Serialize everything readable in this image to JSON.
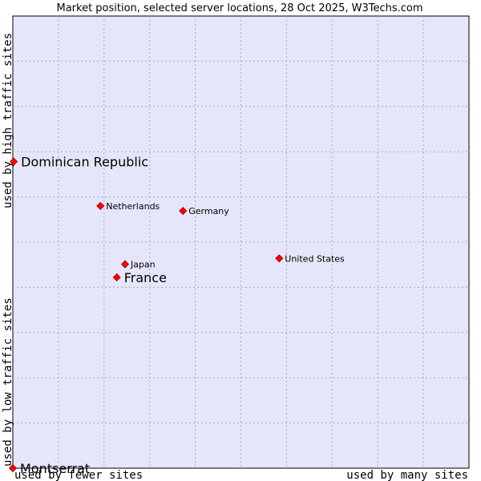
{
  "chart_data": {
    "type": "scatter",
    "title": "Market position, selected server locations, 28 Oct 2025, W3Techs.com",
    "xlabel_left": "used by fewer sites",
    "xlabel_right": "used by many sites",
    "ylabel_bottom": "used by low traffic sites",
    "ylabel_top": "used by high traffic sites",
    "xlim": [
      0,
      100
    ],
    "ylim": [
      0,
      100
    ],
    "grid": true,
    "points": [
      {
        "label": "Dominican Republic",
        "x": 0.2,
        "y": 67.8,
        "highlight": true
      },
      {
        "label": "Netherlands",
        "x": 19.2,
        "y": 58.0,
        "highlight": false
      },
      {
        "label": "Germany",
        "x": 37.3,
        "y": 56.9,
        "highlight": false
      },
      {
        "label": "United States",
        "x": 58.4,
        "y": 46.4,
        "highlight": false
      },
      {
        "label": "Japan",
        "x": 24.6,
        "y": 45.1,
        "highlight": false
      },
      {
        "label": "France",
        "x": 22.8,
        "y": 42.2,
        "highlight": true
      },
      {
        "label": "Montserrat",
        "x": 0.0,
        "y": 0.0,
        "highlight": true
      }
    ]
  },
  "colors": {
    "plot_bg": "#e6e6fa",
    "grid": "#a9a9b8",
    "point": "#ff0000",
    "point_edge": "#990000"
  }
}
